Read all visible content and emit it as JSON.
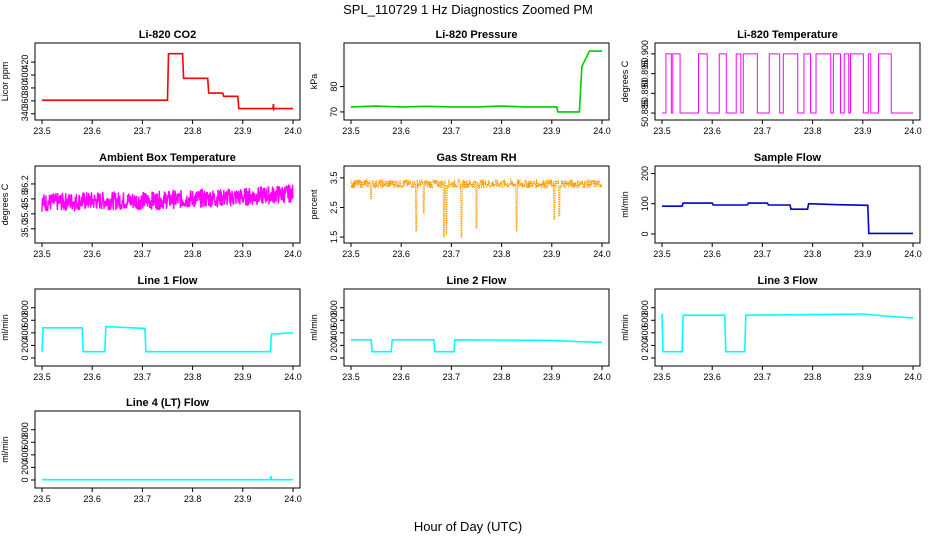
{
  "figure": {
    "title": "SPL_110729  1 Hz Diagnostics Zoomed PM",
    "xlabel": "Hour of Day (UTC)"
  },
  "chart_data": [
    {
      "type": "line",
      "title": "Li-820 CO2",
      "ylabel": "Licor ppm",
      "color": "#ff0000",
      "xlim": [
        23.5,
        24.0
      ],
      "ylim": [
        335,
        445
      ],
      "xticks": [
        "23.5",
        "23.6",
        "23.7",
        "23.8",
        "23.9",
        "24.0"
      ],
      "yticks": [
        "340",
        "360",
        "380",
        "400",
        "420"
      ],
      "series": [
        {
          "x": [
            23.5,
            23.75,
            23.752,
            23.78,
            23.782,
            23.83,
            23.832,
            23.86,
            23.862,
            23.89,
            23.892,
            23.96,
            23.961,
            23.962,
            23.963,
            24.0
          ],
          "y": [
            361,
            361,
            433,
            433,
            395,
            395,
            372,
            372,
            367,
            367,
            348,
            348,
            355,
            347,
            348,
            348
          ]
        }
      ]
    },
    {
      "type": "line",
      "title": "Li-820 Pressure",
      "ylabel": "kPa",
      "color": "#00cc00",
      "xlim": [
        23.5,
        24.0
      ],
      "ylim": [
        68,
        96
      ],
      "xticks": [
        "23.5",
        "23.6",
        "23.7",
        "23.8",
        "23.9",
        "24.0"
      ],
      "yticks": [
        "70",
        "80"
      ],
      "series": [
        {
          "x": [
            23.5,
            23.55,
            23.6,
            23.65,
            23.7,
            23.75,
            23.8,
            23.85,
            23.9,
            23.91,
            23.912,
            23.955,
            23.96,
            23.975,
            24.0
          ],
          "y": [
            72,
            72.3,
            72,
            72.2,
            72,
            72,
            72.3,
            72,
            72,
            72,
            70,
            70,
            88,
            94,
            94
          ]
        }
      ]
    },
    {
      "type": "line",
      "title": "Li-820 Temperature",
      "ylabel": "degrees C",
      "color": "#ff00ff",
      "xlim": [
        23.5,
        24.0
      ],
      "ylim": [
        50.884,
        50.902
      ],
      "xticks": [
        "23.5",
        "23.6",
        "23.7",
        "23.8",
        "23.9",
        "24.0"
      ],
      "yticks": [
        "50.885",
        "50.890",
        "50.895",
        "50.900"
      ],
      "series": [
        {
          "name": "",
          "low": 50.885,
          "high": 50.9,
          "mode": "square-toggle"
        }
      ]
    },
    {
      "type": "line",
      "title": "Ambient Box Temperature",
      "ylabel": "degrees C",
      "color": "#ff00ff",
      "xlim": [
        23.5,
        24.0
      ],
      "ylim": [
        34.7,
        36.6
      ],
      "xticks": [
        "23.5",
        "23.6",
        "23.7",
        "23.8",
        "23.9",
        "24.0"
      ],
      "yticks": [
        "35.0",
        "35.4",
        "35.8",
        "36.2"
      ],
      "series": [
        {
          "x": [
            23.5,
            23.6,
            23.7,
            23.8,
            23.9,
            24.0
          ],
          "y": [
            35.7,
            35.75,
            35.75,
            35.8,
            35.85,
            35.95
          ],
          "noise": 0.25
        }
      ]
    },
    {
      "type": "line",
      "title": "Gas Stream RH",
      "ylabel": "percent",
      "color": "#ff9900",
      "xlim": [
        23.5,
        24.0
      ],
      "ylim": [
        1.4,
        3.8
      ],
      "xticks": [
        "23.5",
        "23.6",
        "23.7",
        "23.8",
        "23.9",
        "24.0"
      ],
      "yticks": [
        "1.5",
        "2.5",
        "3.5"
      ],
      "series": [
        {
          "x": [
            23.5,
            24.0
          ],
          "y": [
            3.3,
            3.3
          ],
          "noise": 0.15,
          "dips": [
            [
              23.54,
              2.8
            ],
            [
              23.63,
              1.7
            ],
            [
              23.645,
              2.3
            ],
            [
              23.685,
              1.5
            ],
            [
              23.69,
              1.6
            ],
            [
              23.72,
              1.5
            ],
            [
              23.75,
              1.8
            ],
            [
              23.83,
              1.7
            ],
            [
              23.905,
              2.1
            ],
            [
              23.915,
              2.2
            ]
          ]
        }
      ]
    },
    {
      "type": "line",
      "title": "Sample Flow",
      "ylabel": "ml/min",
      "color": "#0000cc",
      "xlim": [
        23.5,
        24.0
      ],
      "ylim": [
        -20,
        215
      ],
      "xticks": [
        "23.5",
        "23.6",
        "23.7",
        "23.8",
        "23.9",
        "24.0"
      ],
      "yticks": [
        "0",
        "100",
        "200"
      ],
      "series": [
        {
          "x": [
            23.5,
            23.54,
            23.542,
            23.6,
            23.602,
            23.67,
            23.672,
            23.71,
            23.712,
            23.755,
            23.757,
            23.79,
            23.792,
            23.85,
            23.91,
            23.912,
            24.0
          ],
          "y": [
            92,
            92,
            102,
            102,
            96,
            96,
            102,
            102,
            96,
            96,
            82,
            82,
            100,
            97,
            95,
            2,
            2
          ]
        }
      ]
    },
    {
      "type": "line",
      "title": "Line 1 Flow",
      "ylabel": "ml/min",
      "color": "#00ffff",
      "xlim": [
        23.5,
        24.0
      ],
      "ylim": [
        -80,
        1050
      ],
      "xticks": [
        "23.5",
        "23.6",
        "23.7",
        "23.8",
        "23.9",
        "24.0"
      ],
      "yticks": [
        "0",
        "200",
        "400",
        "600",
        "800"
      ],
      "series": [
        {
          "x": [
            23.5,
            23.502,
            23.58,
            23.582,
            23.625,
            23.627,
            23.705,
            23.707,
            23.955,
            23.957,
            24.0
          ],
          "y": [
            100,
            480,
            480,
            100,
            100,
            500,
            470,
            100,
            100,
            380,
            400
          ]
        }
      ]
    },
    {
      "type": "line",
      "title": "Line 2 Flow",
      "ylabel": "ml/min",
      "color": "#00ffff",
      "xlim": [
        23.5,
        24.0
      ],
      "ylim": [
        -80,
        1050
      ],
      "xticks": [
        "23.5",
        "23.6",
        "23.7",
        "23.8",
        "23.9",
        "24.0"
      ],
      "yticks": [
        "0",
        "200",
        "400",
        "600",
        "800"
      ],
      "series": [
        {
          "x": [
            23.5,
            23.54,
            23.542,
            23.58,
            23.582,
            23.665,
            23.667,
            23.705,
            23.707,
            23.9,
            23.95,
            24.0
          ],
          "y": [
            290,
            290,
            100,
            100,
            290,
            290,
            100,
            100,
            290,
            280,
            260,
            250
          ]
        }
      ]
    },
    {
      "type": "line",
      "title": "Line 3 Flow",
      "ylabel": "ml/min",
      "color": "#00ffff",
      "xlim": [
        23.5,
        24.0
      ],
      "ylim": [
        -80,
        1050
      ],
      "xticks": [
        "23.5",
        "23.6",
        "23.7",
        "23.8",
        "23.9",
        "24.0"
      ],
      "yticks": [
        "0",
        "200",
        "400",
        "600",
        "800"
      ],
      "series": [
        {
          "x": [
            23.5,
            23.502,
            23.504,
            23.54,
            23.542,
            23.625,
            23.627,
            23.665,
            23.667,
            23.8,
            23.9,
            23.97,
            24.0
          ],
          "y": [
            700,
            100,
            100,
            100,
            680,
            680,
            100,
            100,
            680,
            690,
            700,
            650,
            640
          ]
        }
      ]
    },
    {
      "type": "line",
      "title": "Line 4 (LT) Flow",
      "ylabel": "ml/min",
      "color": "#00ffff",
      "xlim": [
        23.5,
        24.0
      ],
      "ylim": [
        -80,
        1050
      ],
      "xticks": [
        "23.5",
        "23.6",
        "23.7",
        "23.8",
        "23.9",
        "24.0"
      ],
      "yticks": [
        "0",
        "200",
        "400",
        "600",
        "800"
      ],
      "series": [
        {
          "x": [
            23.5,
            23.955,
            23.956,
            23.958,
            23.96,
            24.0
          ],
          "y": [
            5,
            5,
            60,
            5,
            5,
            5
          ]
        }
      ]
    }
  ]
}
